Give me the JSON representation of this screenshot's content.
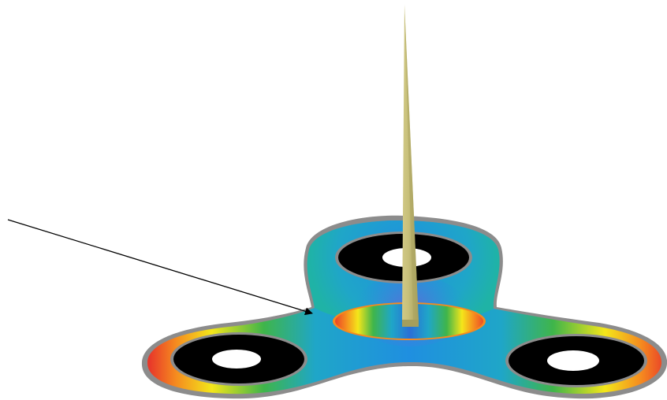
{
  "figure": {
    "kind": "fidget-spinner-heatmap-illustration",
    "palette": {
      "hub_blue": "#1f8fe0",
      "hub_deep_blue": "#2a6fd6",
      "arm_teal": "#1fb3a6",
      "green": "#3fb54a",
      "yellow": "#f4e61a",
      "orange": "#f58a1f",
      "red": "#e8392a",
      "outline_gray": "#8c8c8c",
      "bearing_black": "#000000",
      "bearing_white": "#ffffff",
      "spike_fill": "#c8c07a",
      "spike_edge": "#9a9350",
      "arrow": "#000000"
    },
    "icons": [
      "spinner-body",
      "bearing-ring",
      "center-cap",
      "spike",
      "pointer-arrow"
    ]
  }
}
